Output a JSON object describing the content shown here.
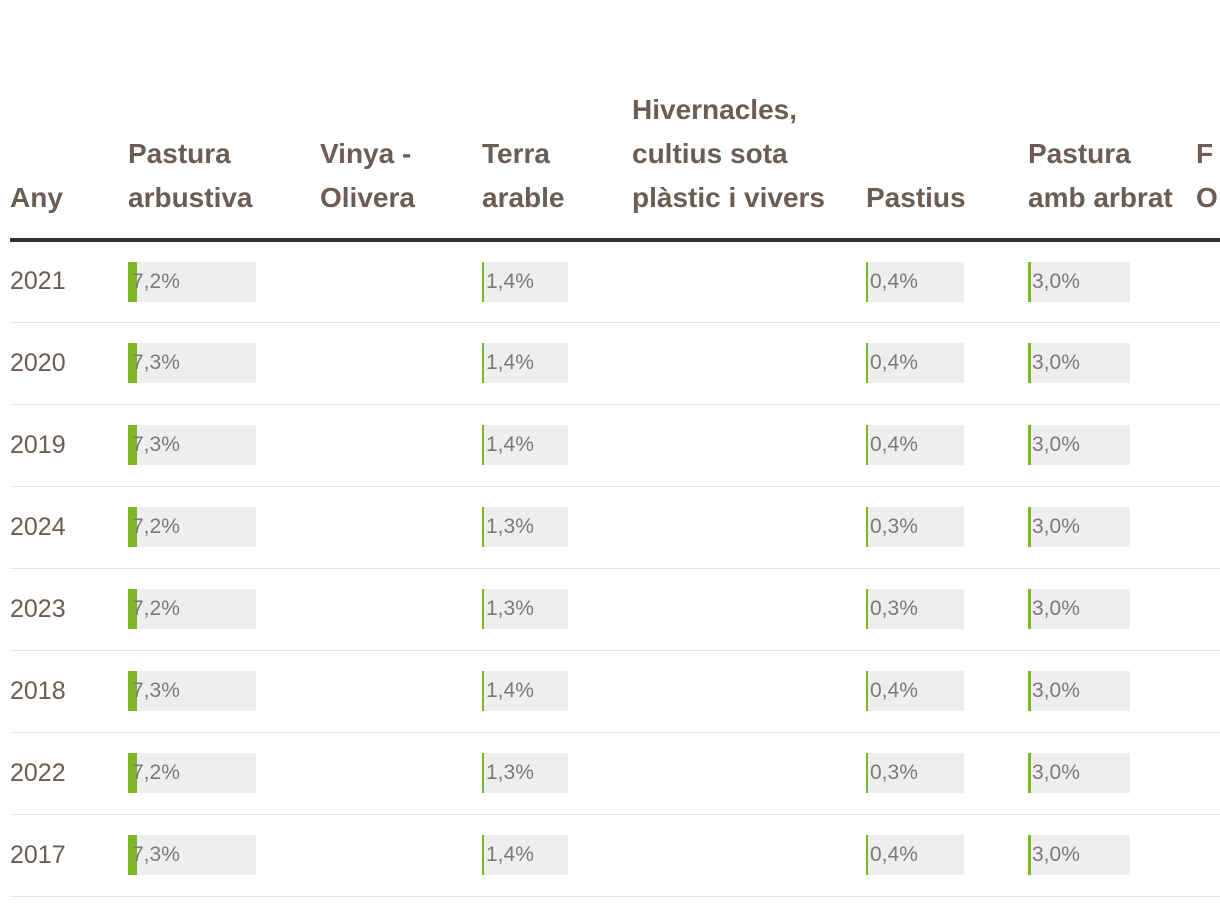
{
  "table": {
    "columns": [
      {
        "key": "any",
        "label": "Any"
      },
      {
        "key": "pastura_arbustiva",
        "label": "Pastura arbustiva",
        "box_width": 128
      },
      {
        "key": "vinya_olivera",
        "label": "Vinya - Olivera"
      },
      {
        "key": "terra_arable",
        "label": "Terra arable",
        "box_width": 86
      },
      {
        "key": "hivernacles",
        "label": "Hivernacles, cultius sota plàstic i vivers"
      },
      {
        "key": "pastius",
        "label": "Pastius",
        "box_width": 98
      },
      {
        "key": "pastura_amb_arbrat",
        "label": "Pastura amb arbrat",
        "box_width": 102
      },
      {
        "key": "f_s_o",
        "label": "F s O"
      }
    ],
    "rows": [
      {
        "any": "2021",
        "pastura_arbustiva": "7,2%",
        "terra_arable": "1,4%",
        "pastius": "0,4%",
        "pastura_amb_arbrat": "3,0%"
      },
      {
        "any": "2020",
        "pastura_arbustiva": "7,3%",
        "terra_arable": "1,4%",
        "pastius": "0,4%",
        "pastura_amb_arbrat": "3,0%"
      },
      {
        "any": "2019",
        "pastura_arbustiva": "7,3%",
        "terra_arable": "1,4%",
        "pastius": "0,4%",
        "pastura_amb_arbrat": "3,0%"
      },
      {
        "any": "2024",
        "pastura_arbustiva": "7,2%",
        "terra_arable": "1,3%",
        "pastius": "0,3%",
        "pastura_amb_arbrat": "3,0%"
      },
      {
        "any": "2023",
        "pastura_arbustiva": "7,2%",
        "terra_arable": "1,3%",
        "pastius": "0,3%",
        "pastura_amb_arbrat": "3,0%"
      },
      {
        "any": "2018",
        "pastura_arbustiva": "7,3%",
        "terra_arable": "1,4%",
        "pastius": "0,4%",
        "pastura_amb_arbrat": "3,0%"
      },
      {
        "any": "2022",
        "pastura_arbustiva": "7,2%",
        "terra_arable": "1,3%",
        "pastius": "0,3%",
        "pastura_amb_arbrat": "3,0%"
      },
      {
        "any": "2017",
        "pastura_arbustiva": "7,3%",
        "terra_arable": "1,4%",
        "pastius": "0,4%",
        "pastura_amb_arbrat": "3,0%"
      }
    ]
  },
  "chart_data": {
    "type": "table",
    "columns": [
      "Any",
      "Pastura arbustiva",
      "Vinya - Olivera",
      "Terra arable",
      "Hivernacles, cultius sota plàstic i vivers",
      "Pastius",
      "Pastura amb arbrat",
      "F s O"
    ],
    "series": [
      {
        "name": "Pastura arbustiva",
        "values": [
          7.2,
          7.3,
          7.3,
          7.2,
          7.2,
          7.3,
          7.2,
          7.3
        ]
      },
      {
        "name": "Terra arable",
        "values": [
          1.4,
          1.4,
          1.4,
          1.3,
          1.3,
          1.4,
          1.3,
          1.4
        ]
      },
      {
        "name": "Pastius",
        "values": [
          0.4,
          0.4,
          0.4,
          0.3,
          0.3,
          0.4,
          0.3,
          0.4
        ]
      },
      {
        "name": "Pastura amb arbrat",
        "values": [
          3.0,
          3.0,
          3.0,
          3.0,
          3.0,
          3.0,
          3.0,
          3.0
        ]
      }
    ],
    "categories": [
      "2021",
      "2020",
      "2019",
      "2024",
      "2023",
      "2018",
      "2022",
      "2017"
    ],
    "bar_scale_max": 100,
    "colors": {
      "bar": "#7db824",
      "bar_track": "#eeeeee",
      "header_rule": "#333333",
      "text": "#6b5d53"
    }
  }
}
